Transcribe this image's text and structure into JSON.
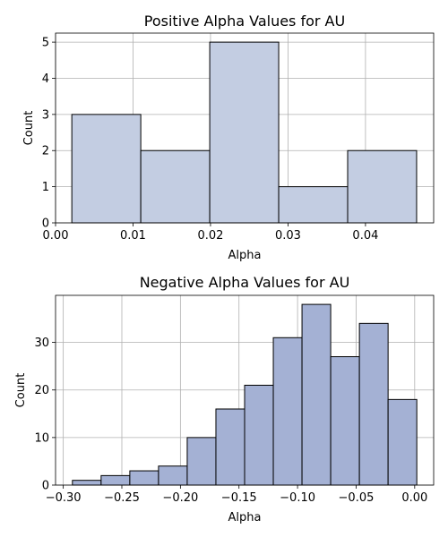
{
  "chart_data": [
    {
      "type": "bar",
      "subtype": "histogram",
      "title": "Positive Alpha Values for AU",
      "xlabel": "Alpha",
      "ylabel": "Count",
      "bins": [
        {
          "x0": 0.0021,
          "x1": 0.011,
          "count": 3
        },
        {
          "x0": 0.011,
          "x1": 0.0199,
          "count": 2
        },
        {
          "x0": 0.0199,
          "x1": 0.0288,
          "count": 5
        },
        {
          "x0": 0.0288,
          "x1": 0.0377,
          "count": 1
        },
        {
          "x0": 0.0377,
          "x1": 0.0466,
          "count": 2
        }
      ],
      "xlim": [
        0.0,
        0.0488
      ],
      "ylim": [
        0,
        5.25
      ],
      "xticks": [
        0.0,
        0.01,
        0.02,
        0.03,
        0.04
      ],
      "xtick_labels": [
        "0.00",
        "0.01",
        "0.02",
        "0.03",
        "0.04"
      ],
      "yticks": [
        0,
        1,
        2,
        3,
        4,
        5
      ],
      "ytick_labels": [
        "0",
        "1",
        "2",
        "3",
        "4",
        "5"
      ],
      "grid": true,
      "bar_color": "#c3cde2",
      "edge_color": "#000000"
    },
    {
      "type": "bar",
      "subtype": "histogram",
      "title": "Negative Alpha Values for AU",
      "xlabel": "Alpha",
      "ylabel": "Count",
      "bins": [
        {
          "x0": -0.2922,
          "x1": -0.2677,
          "count": 1
        },
        {
          "x0": -0.2677,
          "x1": -0.2432,
          "count": 2
        },
        {
          "x0": -0.2432,
          "x1": -0.2187,
          "count": 3
        },
        {
          "x0": -0.2187,
          "x1": -0.1942,
          "count": 4
        },
        {
          "x0": -0.1942,
          "x1": -0.1697,
          "count": 10
        },
        {
          "x0": -0.1697,
          "x1": -0.1452,
          "count": 16
        },
        {
          "x0": -0.1452,
          "x1": -0.1207,
          "count": 21
        },
        {
          "x0": -0.1207,
          "x1": -0.0962,
          "count": 31
        },
        {
          "x0": -0.0962,
          "x1": -0.0717,
          "count": 38
        },
        {
          "x0": -0.0717,
          "x1": -0.0472,
          "count": 27
        },
        {
          "x0": -0.0472,
          "x1": -0.0227,
          "count": 34
        },
        {
          "x0": -0.0227,
          "x1": 0.0018,
          "count": 18
        }
      ],
      "xlim": [
        -0.3066,
        0.0162
      ],
      "ylim": [
        0,
        39.9
      ],
      "xticks": [
        -0.3,
        -0.25,
        -0.2,
        -0.15,
        -0.1,
        -0.05,
        0.0
      ],
      "xtick_labels": [
        "−0.30",
        "−0.25",
        "−0.20",
        "−0.15",
        "−0.10",
        "−0.05",
        "0.00"
      ],
      "yticks": [
        0,
        10,
        20,
        30
      ],
      "ytick_labels": [
        "0",
        "10",
        "20",
        "30"
      ],
      "grid": true,
      "bar_color": "#a4b1d4",
      "edge_color": "#000000"
    }
  ]
}
